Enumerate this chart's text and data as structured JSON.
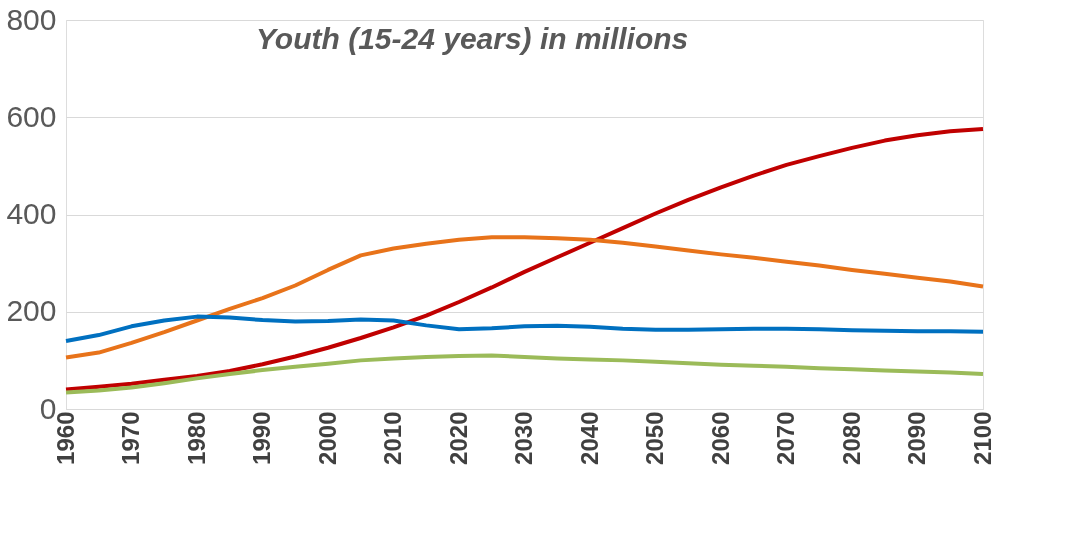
{
  "chart_data": {
    "type": "line",
    "title": "Youth (15-24 years) in millions",
    "x": [
      1960,
      1965,
      1970,
      1975,
      1980,
      1985,
      1990,
      1995,
      2000,
      2005,
      2010,
      2015,
      2020,
      2025,
      2030,
      2035,
      2040,
      2045,
      2050,
      2055,
      2060,
      2065,
      2070,
      2075,
      2080,
      2085,
      2090,
      2095,
      2100
    ],
    "series": [
      {
        "color": "#c00000",
        "values": [
          40,
          46,
          52,
          60,
          68,
          78,
          92,
          108,
          126,
          146,
          168,
          192,
          220,
          250,
          282,
          312,
          342,
          372,
          402,
          430,
          456,
          480,
          502,
          520,
          537,
          552,
          563,
          571,
          576
        ]
      },
      {
        "color": "#e8731a",
        "values": [
          106,
          116,
          136,
          158,
          182,
          206,
          228,
          254,
          286,
          316,
          330,
          340,
          348,
          353,
          353,
          351,
          348,
          342,
          334,
          326,
          318,
          311,
          303,
          295,
          286,
          278,
          270,
          262,
          252
        ]
      },
      {
        "color": "#0070c0",
        "values": [
          140,
          152,
          170,
          182,
          190,
          188,
          183,
          180,
          181,
          184,
          182,
          172,
          164,
          166,
          170,
          171,
          169,
          165,
          163,
          163,
          164,
          165,
          165,
          164,
          162,
          161,
          160,
          160,
          159
        ]
      },
      {
        "color": "#9bbb59",
        "values": [
          34,
          38,
          44,
          53,
          63,
          72,
          80,
          87,
          93,
          100,
          104,
          107,
          109,
          110,
          107,
          104,
          102,
          100,
          97,
          94,
          91,
          89,
          87,
          84,
          82,
          79,
          77,
          75,
          72
        ]
      }
    ],
    "xlim": [
      1960,
      2100
    ],
    "xticks": [
      1960,
      1970,
      1980,
      1990,
      2000,
      2010,
      2020,
      2030,
      2040,
      2050,
      2060,
      2070,
      2080,
      2090,
      2100
    ],
    "ylim": [
      0,
      800
    ],
    "yticks": [
      0,
      200,
      400,
      600,
      800
    ],
    "grid": "y",
    "legend": false,
    "marker": "none",
    "line_style": "solid"
  }
}
